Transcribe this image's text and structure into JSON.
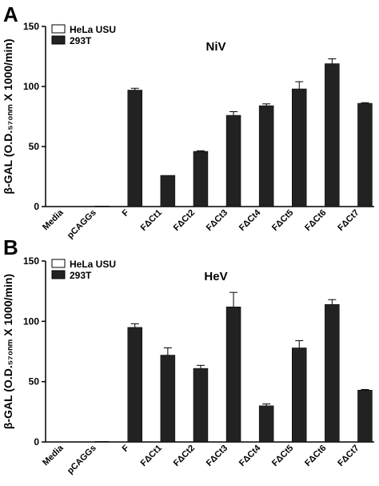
{
  "figure": {
    "panels": [
      {
        "letter": "A",
        "y_axis_label": "β-GAL (O.D.₅₇₀ₙₘ X 1000/min)"
      },
      {
        "letter": "B",
        "y_axis_label": "β-GAL (O.D.₅₇₀ₙₘ X 1000/min)"
      }
    ]
  },
  "colors": {
    "bar_fill": "#222222",
    "open_fill": "#ffffff",
    "axis": "#000000"
  },
  "chart_data": [
    {
      "type": "bar",
      "title": "NiV",
      "ylabel": "β-GAL (O.D.570nm X 1000/min)",
      "ylim": [
        0,
        150
      ],
      "yticks": [
        0,
        50,
        100,
        150
      ],
      "legend_position": "top-left",
      "categories": [
        "Media",
        "pCAGGs",
        "F",
        "FΔCt1",
        "FΔCt2",
        "FΔCt3",
        "FΔCt4",
        "FΔCt5",
        "FΔCt6",
        "FΔCt7"
      ],
      "series": [
        {
          "name": "HeLa USU",
          "color": "#ffffff",
          "values": [
            0,
            0,
            0,
            0,
            0,
            0,
            0,
            0,
            0,
            0
          ],
          "errors": [
            0,
            0,
            0,
            0,
            0,
            0,
            0,
            0,
            0,
            0
          ]
        },
        {
          "name": "293T",
          "color": "#222222",
          "values": [
            0,
            0.5,
            97,
            26,
            46,
            76,
            84,
            98,
            119,
            86
          ],
          "errors": [
            0,
            0,
            1.5,
            0,
            0.5,
            3,
            1.5,
            6,
            4,
            0.5
          ]
        }
      ]
    },
    {
      "type": "bar",
      "title": "HeV",
      "ylabel": "β-GAL (O.D.570nm X 1000/min)",
      "ylim": [
        0,
        150
      ],
      "yticks": [
        0,
        50,
        100,
        150
      ],
      "legend_position": "top-left",
      "categories": [
        "Media",
        "pCAGGs",
        "F",
        "FΔCt1",
        "FΔCt2",
        "FΔCt3",
        "FΔCt4",
        "FΔCt5",
        "FΔCt6",
        "FΔCt7"
      ],
      "series": [
        {
          "name": "HeLa USU",
          "color": "#ffffff",
          "values": [
            0,
            0,
            0,
            0,
            0,
            0,
            0,
            0,
            0,
            0
          ],
          "errors": [
            0,
            0,
            0,
            0,
            0,
            0,
            0,
            0,
            0,
            0
          ]
        },
        {
          "name": "293T",
          "color": "#222222",
          "values": [
            0,
            0.5,
            95,
            72,
            61,
            112,
            30,
            78,
            114,
            43
          ],
          "errors": [
            0,
            0,
            3,
            6,
            2.5,
            12,
            1.5,
            6,
            4,
            0.5
          ]
        }
      ]
    }
  ]
}
